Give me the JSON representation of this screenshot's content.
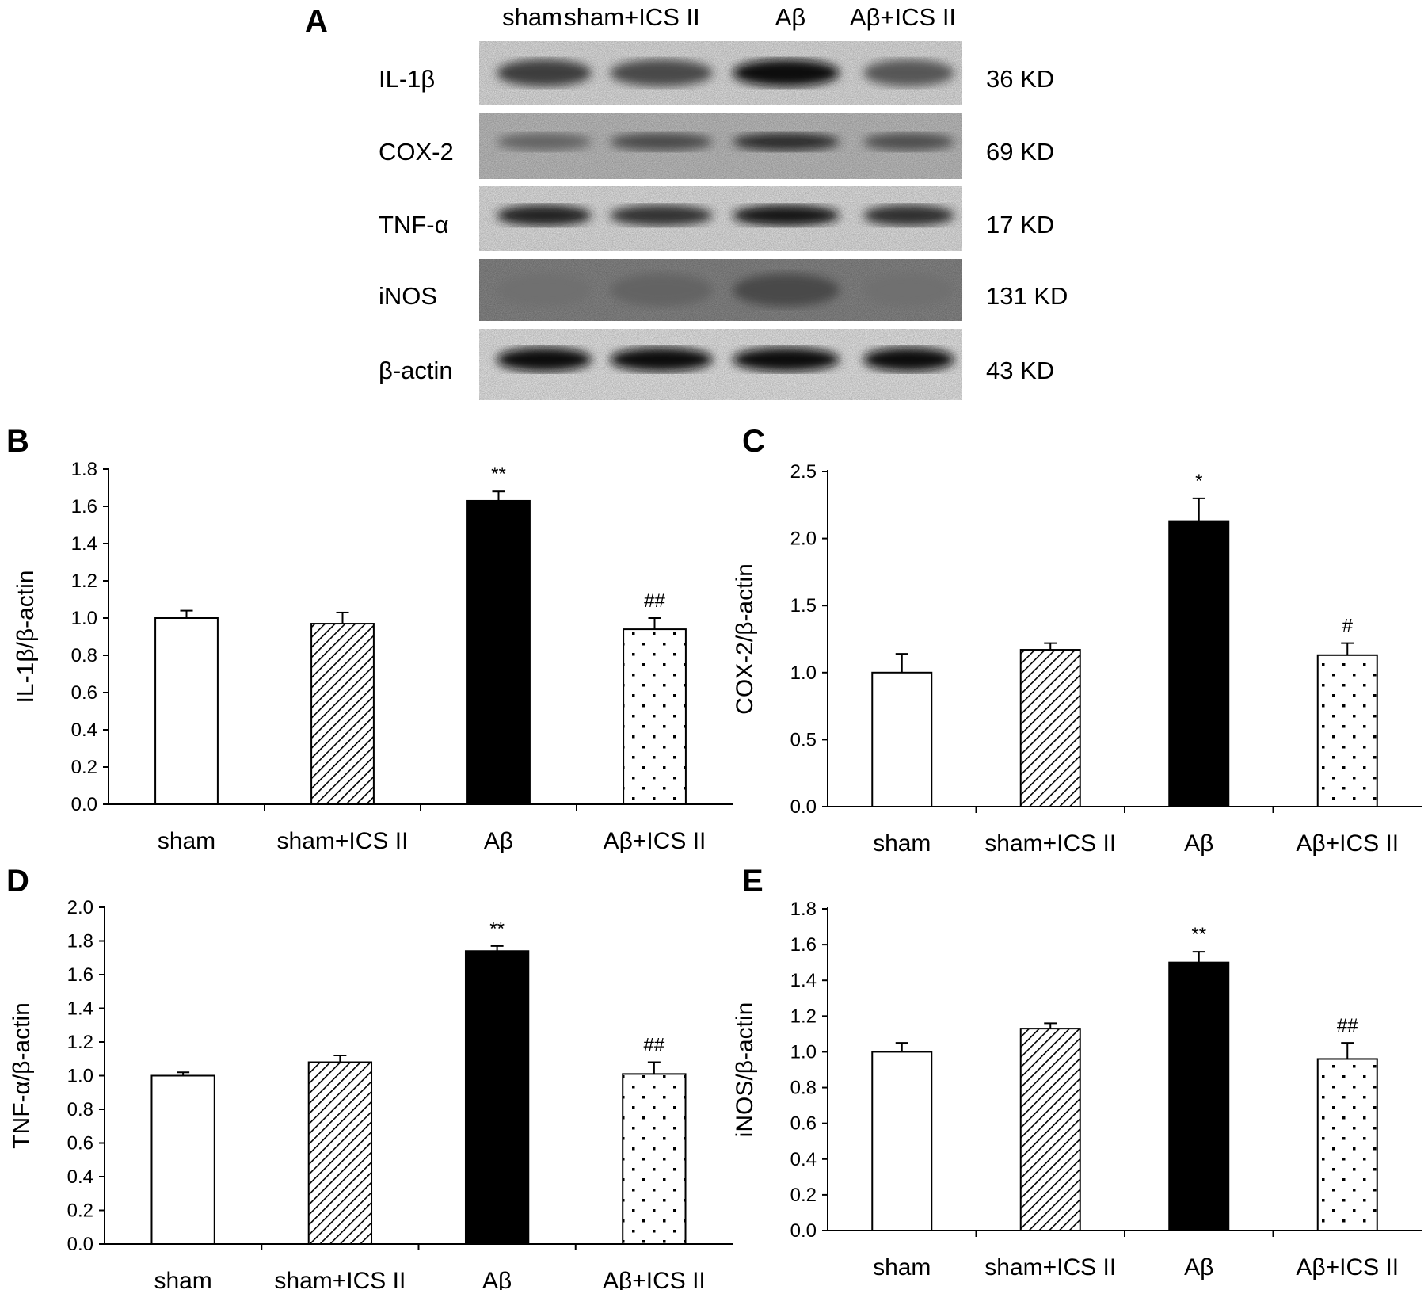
{
  "colors": {
    "ink": "#000000",
    "fill_white": "#ffffff",
    "fill_black": "#000000"
  },
  "group_fills": [
    "white",
    "hatch",
    "black",
    "dots"
  ],
  "panel_a": {
    "letter": "A",
    "lanes": [
      "sham",
      "sham+ICS II",
      "Aβ",
      "Aβ+ICS II"
    ],
    "blots": [
      {
        "protein": "IL-1β",
        "size": "36 KD",
        "band_intensity": [
          0.78,
          0.72,
          1.0,
          0.66
        ]
      },
      {
        "protein": "COX-2",
        "size": "69 KD",
        "band_intensity": [
          0.6,
          0.72,
          0.86,
          0.7
        ]
      },
      {
        "protein": "TNF-α",
        "size": "17 KD",
        "band_intensity": [
          0.9,
          0.82,
          0.96,
          0.84
        ]
      },
      {
        "protein": "iNOS",
        "size": "131 KD",
        "band_intensity": [
          0.55,
          0.6,
          0.72,
          0.55
        ]
      },
      {
        "protein": "β-actin",
        "size": "43 KD",
        "band_intensity": [
          1.0,
          1.0,
          1.0,
          1.0
        ]
      }
    ]
  },
  "chart_data": [
    {
      "panel": "B",
      "type": "bar",
      "categories": [
        "sham",
        "sham+ICS II",
        "Aβ",
        "Aβ+ICS II"
      ],
      "values": [
        1.0,
        0.97,
        1.63,
        0.94
      ],
      "errors": [
        0.04,
        0.06,
        0.05,
        0.06
      ],
      "annotations": [
        "",
        "",
        "**",
        "##"
      ],
      "ylabel": "IL-1β/β-actin",
      "xlabel": "",
      "ylim": [
        0,
        1.8
      ],
      "yticks": [
        0.0,
        0.2,
        0.4,
        0.6,
        0.8,
        1.0,
        1.2,
        1.4,
        1.6,
        1.8
      ],
      "tick_decimals": 1,
      "grid": false,
      "legend": "none"
    },
    {
      "panel": "C",
      "type": "bar",
      "categories": [
        "sham",
        "sham+ICS II",
        "Aβ",
        "Aβ+ICS II"
      ],
      "values": [
        1.0,
        1.17,
        2.13,
        1.13
      ],
      "errors": [
        0.14,
        0.05,
        0.17,
        0.09
      ],
      "annotations": [
        "",
        "",
        "*",
        "#"
      ],
      "ylabel": "COX-2/β-actin",
      "xlabel": "",
      "ylim": [
        0,
        2.5
      ],
      "yticks": [
        0.0,
        0.5,
        1.0,
        1.5,
        2.0,
        2.5
      ],
      "tick_decimals": 1,
      "grid": false,
      "legend": "none"
    },
    {
      "panel": "D",
      "type": "bar",
      "categories": [
        "sham",
        "sham+ICS II",
        "Aβ",
        "Aβ+ICS II"
      ],
      "values": [
        1.0,
        1.08,
        1.74,
        1.01
      ],
      "errors": [
        0.02,
        0.04,
        0.03,
        0.07
      ],
      "annotations": [
        "",
        "",
        "**",
        "##"
      ],
      "ylabel": "TNF-α/β-actin",
      "xlabel": "",
      "ylim": [
        0,
        2.0
      ],
      "yticks": [
        0.0,
        0.2,
        0.4,
        0.6,
        0.8,
        1.0,
        1.2,
        1.4,
        1.6,
        1.8,
        2.0
      ],
      "tick_decimals": 1,
      "grid": false,
      "legend": "none"
    },
    {
      "panel": "E",
      "type": "bar",
      "categories": [
        "sham",
        "sham+ICS II",
        "Aβ",
        "Aβ+ICS II"
      ],
      "values": [
        1.0,
        1.13,
        1.5,
        0.96
      ],
      "errors": [
        0.05,
        0.03,
        0.06,
        0.09
      ],
      "annotations": [
        "",
        "",
        "**",
        "##"
      ],
      "ylabel": "iNOS/β-actin",
      "xlabel": "",
      "ylim": [
        0,
        1.8
      ],
      "yticks": [
        0.0,
        0.2,
        0.4,
        0.6,
        0.8,
        1.0,
        1.2,
        1.4,
        1.6,
        1.8
      ],
      "tick_decimals": 1,
      "grid": false,
      "legend": "none"
    }
  ]
}
